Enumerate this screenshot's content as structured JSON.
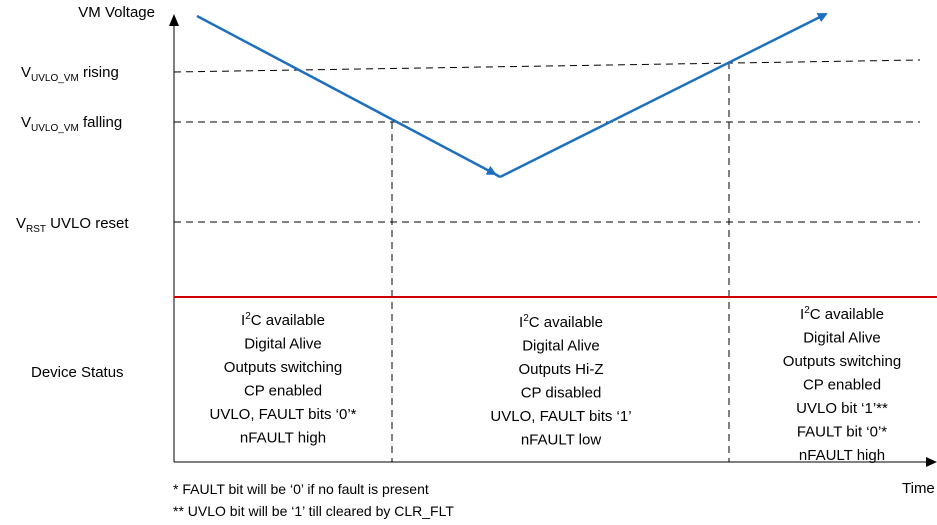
{
  "y_axis_label": "VM Voltage",
  "x_axis_label": "Time",
  "levels": {
    "uvlo_rising": {
      "v": "V",
      "sub": "UVLO_VM",
      "text": " rising"
    },
    "uvlo_falling": {
      "v": "V",
      "sub": "UVLO_VM",
      "text": " falling"
    },
    "rst": {
      "v": "V",
      "sub": "RST",
      "text": " UVLO reset"
    }
  },
  "device_status_label": "Device Status",
  "columns": [
    {
      "lines": [
        {
          "pre": "I",
          "sup": "2",
          "post": "C available"
        },
        {
          "text": "Digital Alive"
        },
        {
          "text": "Outputs switching"
        },
        {
          "text": "CP enabled"
        },
        {
          "text": "UVLO, FAULT bits ‘0’*"
        },
        {
          "text": "nFAULT high"
        }
      ]
    },
    {
      "lines": [
        {
          "pre": "I",
          "sup": "2",
          "post": "C available"
        },
        {
          "text": "Digital Alive"
        },
        {
          "text": "Outputs Hi-Z"
        },
        {
          "text": "CP disabled"
        },
        {
          "text": "UVLO, FAULT bits ‘1’"
        },
        {
          "text": "nFAULT low"
        }
      ]
    },
    {
      "lines": [
        {
          "pre": "I",
          "sup": "2",
          "post": "C available"
        },
        {
          "text": "Digital Alive"
        },
        {
          "text": "Outputs switching"
        },
        {
          "text": "CP enabled"
        },
        {
          "text": "UVLO bit ‘1’**"
        },
        {
          "text": "FAULT bit ‘0’*"
        },
        {
          "text": "nFAULT high"
        }
      ]
    }
  ],
  "footnotes": [
    "* FAULT bit will be ‘0’ if no fault is present",
    "** UVLO bit will be ‘1’ till cleared by CLR_FLT"
  ],
  "colors": {
    "voltage_line": "#1f6fbf",
    "status_divider": "#cc0000",
    "axis": "#000000",
    "dashed": "#000000"
  }
}
